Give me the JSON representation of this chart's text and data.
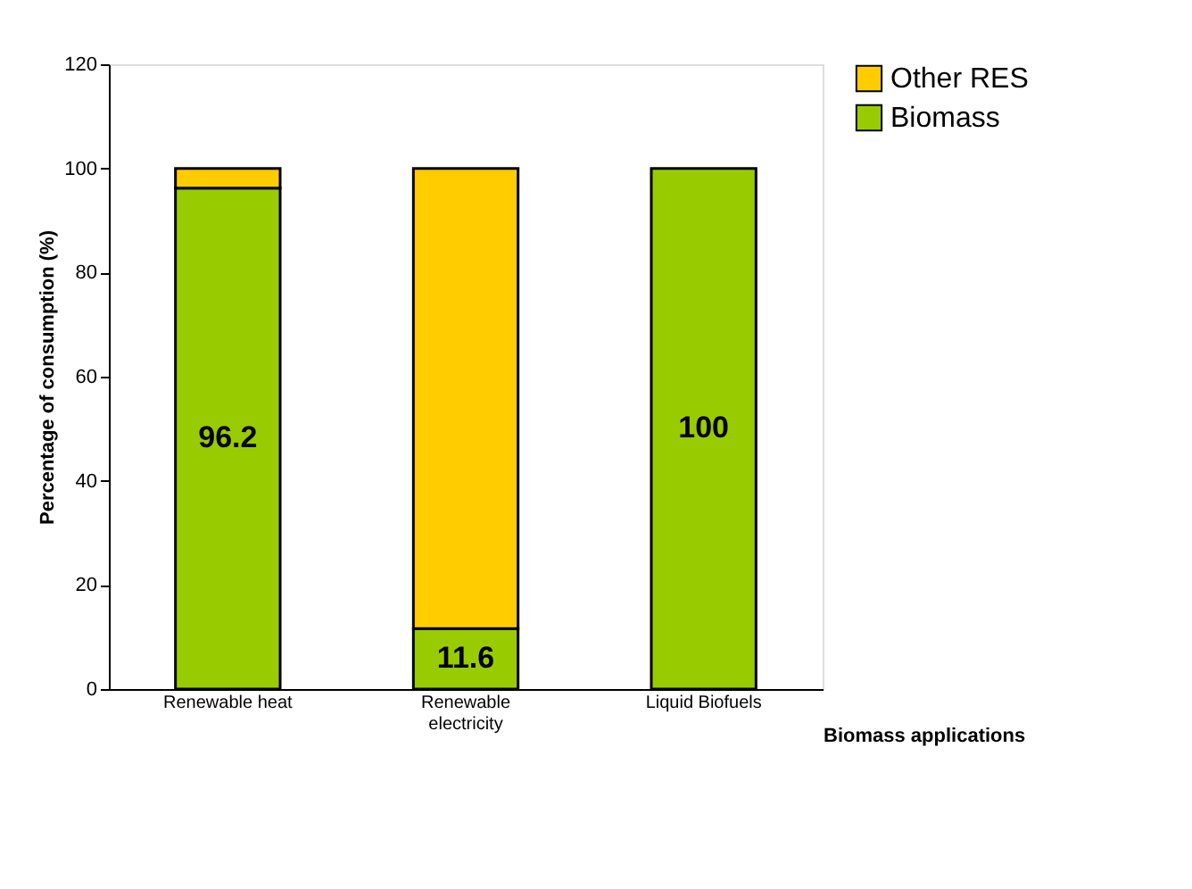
{
  "chart_data": {
    "type": "bar",
    "stacked": true,
    "ylabel": "Percentage of consumption (%)",
    "xlabel": "Biomass applications",
    "categories": [
      "Renewable heat",
      "Renewable electricity",
      "Liquid Biofuels"
    ],
    "series": [
      {
        "name": "Biomass",
        "color": "#99cc00",
        "values": [
          96.2,
          11.6,
          100
        ],
        "value_labels": [
          "96.2",
          "11.6",
          "100"
        ]
      },
      {
        "name": "Other RES",
        "color": "#ffcc00",
        "values": [
          3.8,
          88.4,
          null
        ]
      }
    ],
    "ylim": [
      0,
      120
    ],
    "yticks": [
      0,
      20,
      40,
      60,
      80,
      100,
      120
    ],
    "grid": false,
    "legend": "right"
  }
}
